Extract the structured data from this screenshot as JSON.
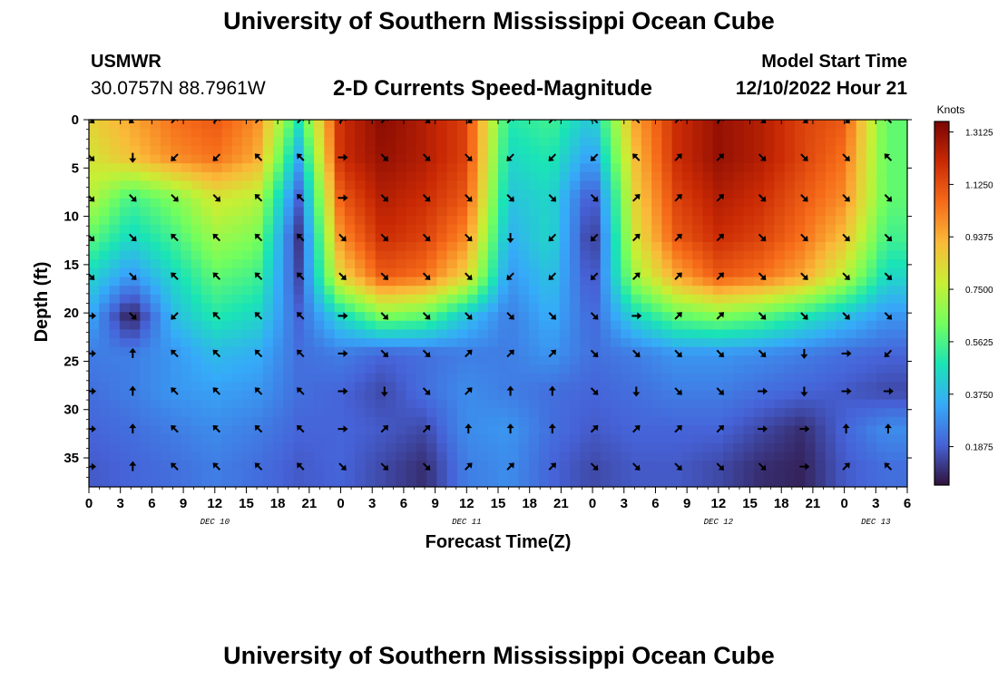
{
  "page": {
    "title": "University of Southern Mississippi Ocean Cube",
    "footer_title": "University of Southern Mississippi Ocean Cube",
    "station": "USMWR",
    "coordinates": "30.0757N  88.7961W",
    "model_start_label": "Model Start Time",
    "model_start_value": "12/10/2022 Hour 21"
  },
  "colors": {
    "ramp": [
      "#30123b",
      "#4662d7",
      "#36aaf9",
      "#1ae4b6",
      "#72fe5e",
      "#c8ef34",
      "#faba39",
      "#f66b19",
      "#ca2a04",
      "#7a0403"
    ],
    "arrow": "#000000",
    "axis": "#000000"
  },
  "chart_data": {
    "type": "heatmap",
    "title": "2-D Currents Speed-Magnitude",
    "xlabel": "Forecast Time(Z)",
    "ylabel": "Depth (ft)",
    "x_tick_labels": [
      "0",
      "3",
      "6",
      "9",
      "12",
      "15",
      "18",
      "21",
      "0",
      "3",
      "6",
      "9",
      "12",
      "15",
      "18",
      "21",
      "0",
      "3",
      "6",
      "9",
      "12",
      "15",
      "18",
      "21",
      "0",
      "3",
      "6"
    ],
    "x_range_hours": [
      0,
      78
    ],
    "day_labels": [
      {
        "label": "DEC 10",
        "hour": 12
      },
      {
        "label": "DEC 11",
        "hour": 36
      },
      {
        "label": "DEC 12",
        "hour": 60
      },
      {
        "label": "DEC 13",
        "hour": 75
      }
    ],
    "y_ticks": [
      0,
      5,
      10,
      15,
      20,
      25,
      30,
      35
    ],
    "ylim": [
      38,
      0
    ],
    "depths": [
      0,
      3.9,
      8.1,
      12.2,
      16.2,
      20.3,
      24.2,
      28.1,
      32,
      35.9
    ],
    "hours": [
      0,
      4,
      8,
      12,
      16,
      20,
      24,
      28,
      32,
      36,
      40,
      44,
      48,
      52,
      56,
      60,
      64,
      68,
      72,
      76
    ],
    "speed_knots": [
      [
        0.85,
        0.95,
        1.05,
        1.1,
        1.0,
        0.5,
        1.2,
        1.32,
        1.25,
        1.15,
        0.5,
        0.55,
        0.4,
        0.95,
        1.2,
        1.3,
        1.25,
        1.15,
        1.1,
        0.6
      ],
      [
        0.8,
        0.9,
        1.0,
        1.05,
        0.95,
        0.35,
        1.2,
        1.3,
        1.25,
        1.15,
        0.45,
        0.5,
        0.3,
        0.9,
        1.2,
        1.3,
        1.25,
        1.15,
        1.05,
        0.6
      ],
      [
        0.75,
        0.55,
        0.65,
        0.8,
        0.75,
        0.2,
        1.1,
        1.25,
        1.2,
        1.1,
        0.4,
        0.45,
        0.15,
        0.85,
        1.15,
        1.25,
        1.2,
        1.1,
        1.0,
        0.6
      ],
      [
        0.6,
        0.45,
        0.55,
        0.7,
        0.65,
        0.12,
        1.0,
        1.2,
        1.15,
        1.0,
        0.35,
        0.45,
        0.1,
        0.8,
        1.1,
        1.2,
        1.15,
        1.05,
        0.9,
        0.55
      ],
      [
        0.45,
        0.3,
        0.45,
        0.6,
        0.55,
        0.15,
        0.85,
        1.1,
        1.05,
        0.85,
        0.3,
        0.4,
        0.15,
        0.7,
        0.95,
        1.1,
        1.05,
        0.95,
        0.75,
        0.45
      ],
      [
        0.35,
        0.06,
        0.38,
        0.5,
        0.45,
        0.2,
        0.45,
        0.65,
        0.6,
        0.4,
        0.25,
        0.35,
        0.2,
        0.45,
        0.6,
        0.65,
        0.6,
        0.5,
        0.4,
        0.3
      ],
      [
        0.25,
        0.25,
        0.3,
        0.38,
        0.35,
        0.22,
        0.25,
        0.2,
        0.22,
        0.25,
        0.25,
        0.3,
        0.22,
        0.25,
        0.3,
        0.3,
        0.28,
        0.25,
        0.22,
        0.2
      ],
      [
        0.22,
        0.25,
        0.3,
        0.32,
        0.3,
        0.22,
        0.2,
        0.15,
        0.22,
        0.28,
        0.25,
        0.22,
        0.2,
        0.22,
        0.25,
        0.25,
        0.22,
        0.2,
        0.18,
        0.15
      ],
      [
        0.2,
        0.22,
        0.25,
        0.28,
        0.25,
        0.2,
        0.2,
        0.18,
        0.15,
        0.28,
        0.3,
        0.22,
        0.18,
        0.2,
        0.2,
        0.2,
        0.15,
        0.1,
        0.2,
        0.28
      ],
      [
        0.18,
        0.2,
        0.22,
        0.25,
        0.22,
        0.18,
        0.2,
        0.15,
        0.1,
        0.25,
        0.28,
        0.2,
        0.15,
        0.18,
        0.18,
        0.15,
        0.1,
        0.08,
        0.18,
        0.22
      ]
    ],
    "vector_hours": [
      0,
      4,
      8,
      12,
      16,
      20,
      24,
      28,
      32,
      36,
      40,
      44,
      48,
      52,
      56,
      60,
      64,
      68,
      72,
      76
    ],
    "vector_depths": [
      0,
      3.9,
      8.1,
      12.2,
      16.2,
      20.3,
      24.2,
      28.1,
      32,
      35.9
    ],
    "vector_direction_deg": [
      [
        135,
        225,
        45,
        45,
        45,
        45,
        45,
        45,
        135,
        135,
        45,
        45,
        315,
        315,
        45,
        45,
        135,
        135,
        135,
        315
      ],
      [
        135,
        180,
        225,
        225,
        315,
        315,
        90,
        135,
        135,
        135,
        225,
        225,
        225,
        315,
        45,
        45,
        135,
        135,
        135,
        315
      ],
      [
        135,
        135,
        135,
        135,
        315,
        315,
        90,
        135,
        135,
        135,
        135,
        135,
        135,
        45,
        45,
        45,
        135,
        135,
        135,
        135
      ],
      [
        135,
        135,
        315,
        315,
        315,
        315,
        135,
        135,
        135,
        135,
        180,
        225,
        225,
        45,
        45,
        45,
        135,
        135,
        135,
        135
      ],
      [
        135,
        135,
        315,
        315,
        315,
        315,
        135,
        135,
        135,
        135,
        225,
        225,
        225,
        45,
        45,
        45,
        135,
        135,
        135,
        135
      ],
      [
        90,
        135,
        225,
        315,
        315,
        315,
        90,
        135,
        135,
        135,
        135,
        135,
        135,
        90,
        45,
        45,
        135,
        135,
        135,
        135
      ],
      [
        90,
        0,
        315,
        315,
        315,
        315,
        90,
        135,
        135,
        45,
        45,
        45,
        135,
        135,
        135,
        135,
        135,
        180,
        90,
        225
      ],
      [
        90,
        0,
        315,
        315,
        315,
        315,
        90,
        180,
        135,
        45,
        0,
        0,
        135,
        180,
        135,
        135,
        90,
        180,
        90,
        90
      ],
      [
        90,
        0,
        315,
        315,
        315,
        315,
        90,
        45,
        45,
        0,
        0,
        0,
        45,
        45,
        45,
        45,
        90,
        90,
        0,
        0
      ],
      [
        90,
        0,
        315,
        315,
        315,
        315,
        135,
        135,
        135,
        45,
        45,
        45,
        135,
        135,
        135,
        135,
        135,
        90,
        45,
        315
      ]
    ],
    "colorbar": {
      "unit": "Knots",
      "range": [
        0.05,
        1.35
      ],
      "tick_labels": [
        "1.3125",
        "1.1250",
        "0.9375",
        "0.7500",
        "0.5625",
        "0.3750",
        "0.1875"
      ]
    }
  }
}
